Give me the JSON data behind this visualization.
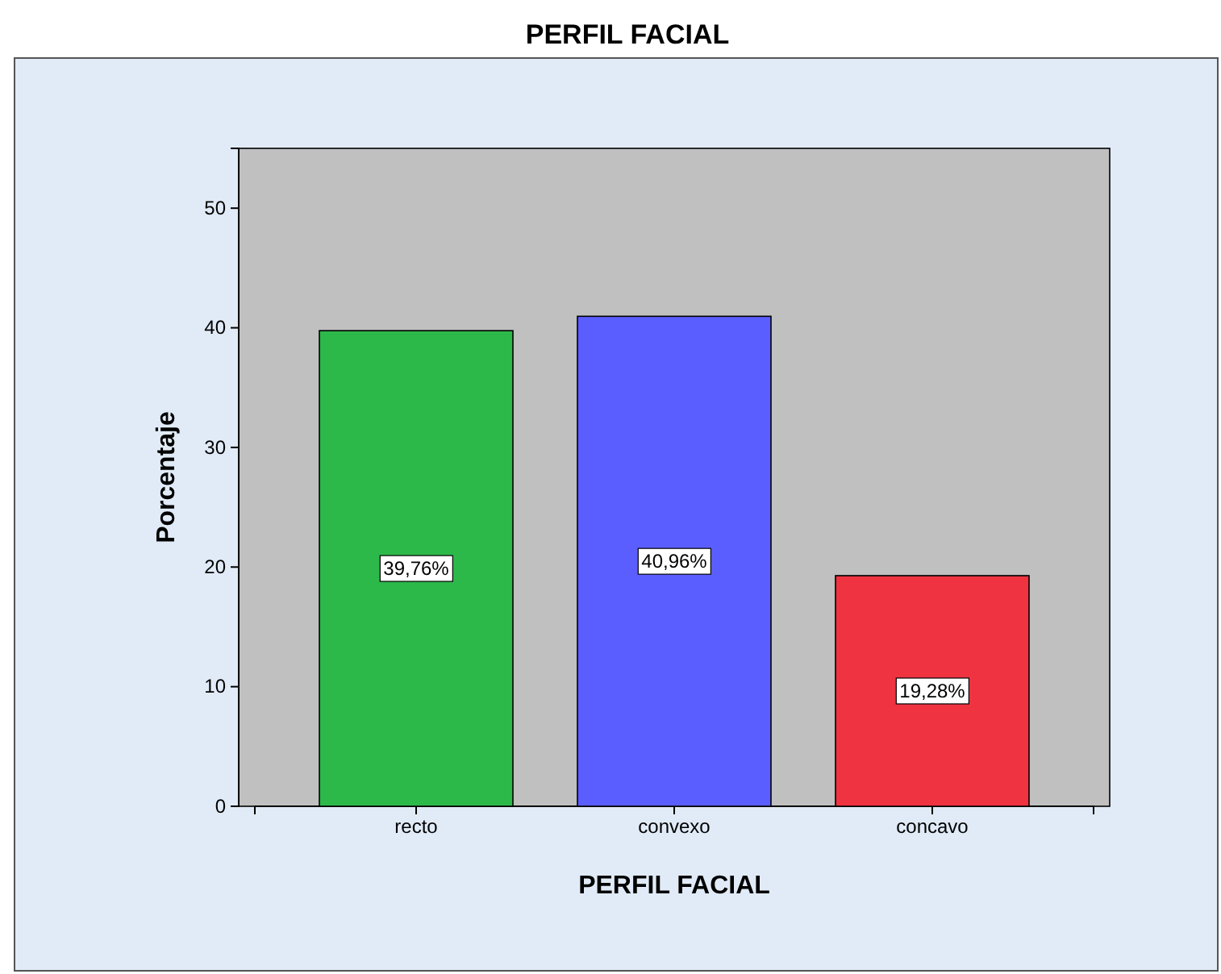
{
  "chart_data": {
    "type": "bar",
    "title": "PERFIL FACIAL",
    "xlabel": "PERFIL FACIAL",
    "ylabel": "Porcentaje",
    "categories": [
      "recto",
      "convexo",
      "concavo"
    ],
    "values": [
      39.76,
      40.96,
      19.28
    ],
    "colors": [
      "#2db84a",
      "#5a5eff",
      "#ef3340"
    ],
    "value_labels": [
      "39,76%",
      "40,96%",
      "19,28%"
    ],
    "ylim": [
      0,
      55
    ],
    "yticks": [
      0,
      10,
      20,
      30,
      40,
      50
    ]
  }
}
